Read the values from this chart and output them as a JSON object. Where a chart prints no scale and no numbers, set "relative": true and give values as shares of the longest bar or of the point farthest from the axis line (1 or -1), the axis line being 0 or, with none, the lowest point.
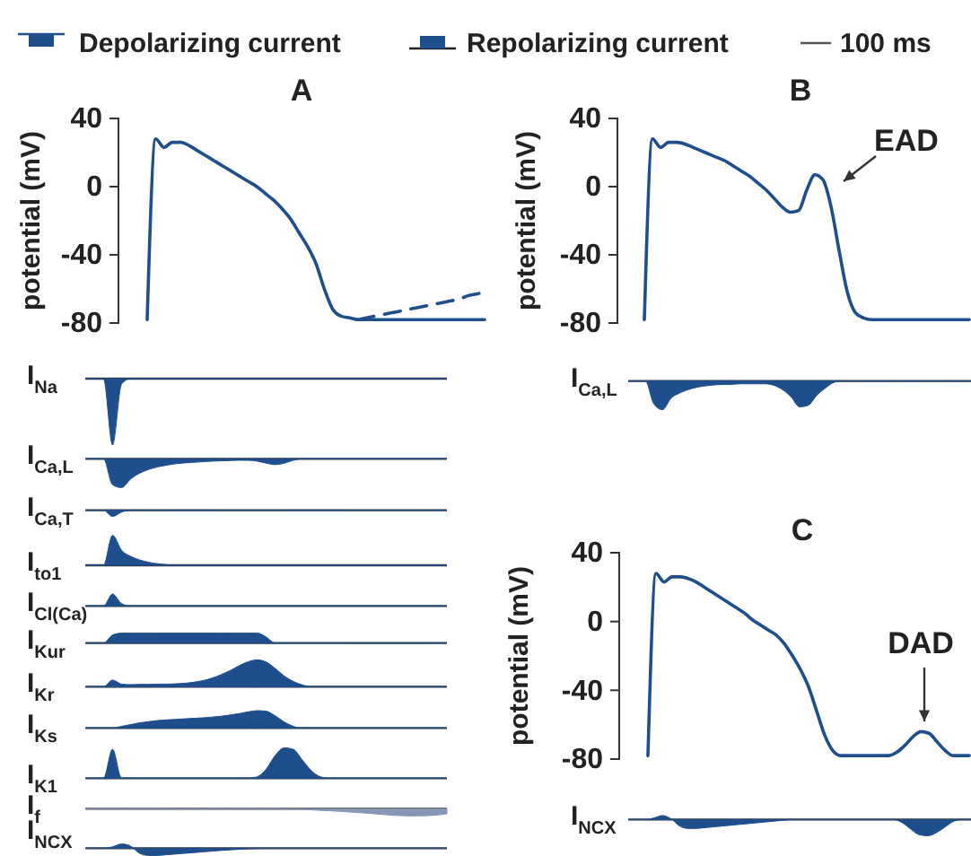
{
  "chart_data": [
    {
      "type": "line",
      "title": "A",
      "ylabel": "potential (mV)",
      "annotations": [
        "Depolarizing current",
        "Repolarizing current",
        "100 ms"
      ],
      "categories": [
        null,
        null,
        null,
        null,
        null,
        null,
        null,
        null,
        null,
        null,
        null,
        null,
        null,
        null,
        null,
        null,
        null,
        null,
        null,
        null,
        null,
        null,
        null,
        null,
        null,
        null,
        null,
        null,
        null,
        null,
        null,
        null,
        null,
        null,
        null,
        null,
        null,
        null,
        null,
        null,
        null
      ],
      "series": [
        {
          "color": "#1f4e8c",
          "line_style": "solid",
          "values": [
            -78,
            28,
            23,
            26,
            26,
            24,
            21,
            18,
            15,
            12,
            9,
            6,
            3,
            0,
            -4,
            -8,
            -13,
            -19,
            -27,
            -35,
            -45,
            -60,
            -72,
            -76,
            -77,
            -78,
            -78,
            -78,
            -78,
            -78,
            -78,
            -78,
            -78,
            -78,
            -78,
            -78,
            -78,
            -78,
            -78,
            -78,
            -78
          ]
        },
        {
          "color": "#1f4e8c",
          "line_style": "dashed",
          "values": [
            null,
            null,
            null,
            null,
            null,
            null,
            null,
            null,
            null,
            null,
            null,
            null,
            null,
            null,
            null,
            null,
            null,
            null,
            null,
            null,
            null,
            null,
            null,
            null,
            null,
            -78,
            -77,
            -76,
            -75,
            -74,
            -73,
            -72,
            -71,
            -70,
            -69,
            -68,
            -67,
            -66,
            -64,
            -63,
            -62
          ]
        }
      ],
      "ylim": [
        -80,
        40
      ],
      "yticks": [
        -80,
        -40,
        0,
        40
      ],
      "tick_labels": "y"
    },
    {
      "type": "line",
      "title": "B",
      "ylabel": "potential (mV)",
      "annotations": [
        "EAD"
      ],
      "categories": [
        null,
        null,
        null,
        null,
        null,
        null,
        null,
        null,
        null,
        null,
        null,
        null,
        null,
        null,
        null,
        null,
        null,
        null,
        null,
        null,
        null,
        null,
        null,
        null,
        null,
        null,
        null,
        null,
        null,
        null,
        null,
        null,
        null,
        null,
        null,
        null,
        null,
        null,
        null,
        null,
        null
      ],
      "series": [
        {
          "color": "#1f4e8c",
          "line_style": "solid",
          "values": [
            -78,
            28,
            23,
            26,
            26,
            25,
            23,
            21,
            19,
            17,
            15,
            12,
            9,
            6,
            2,
            -2,
            -7,
            -12,
            -15,
            -14,
            -2,
            7,
            4,
            -12,
            -38,
            -62,
            -74,
            -77,
            -78,
            -78,
            -78,
            -78,
            -78,
            -78,
            -78,
            -78,
            -78,
            -78,
            -78,
            -78,
            -78
          ]
        }
      ],
      "ylim": [
        -80,
        40
      ],
      "yticks": [
        -80,
        -40,
        0,
        40
      ],
      "tick_labels": "y"
    },
    {
      "type": "area",
      "ylabel": "I$_{Na}$",
      "relative": true,
      "color": "#1f4e8c",
      "categories": [
        null,
        null,
        null,
        null,
        null,
        null,
        null,
        null,
        null,
        null,
        null,
        null,
        null,
        null,
        null,
        null,
        null,
        null,
        null,
        null,
        null,
        null,
        null,
        null,
        null,
        null,
        null,
        null,
        null,
        null,
        null,
        null,
        null,
        null,
        null,
        null,
        null,
        null,
        null,
        null,
        null
      ],
      "values": [
        0,
        0,
        0,
        -1,
        -0.08,
        0,
        0,
        0,
        0,
        0,
        0,
        0,
        0,
        0,
        0,
        0,
        0,
        0,
        0,
        0,
        0,
        0,
        0,
        0,
        0,
        0,
        0,
        0,
        0,
        0,
        0,
        0,
        0,
        0,
        0,
        0,
        0,
        0,
        0,
        0,
        0
      ]
    },
    {
      "type": "area",
      "ylabel": "I$_{Ca,L}$",
      "relative": true,
      "color": "#1f4e8c",
      "categories": [
        null,
        null,
        null,
        null,
        null,
        null,
        null,
        null,
        null,
        null,
        null,
        null,
        null,
        null,
        null,
        null,
        null,
        null,
        null,
        null,
        null,
        null,
        null,
        null,
        null,
        null,
        null,
        null,
        null,
        null,
        null,
        null,
        null,
        null,
        null,
        null,
        null,
        null,
        null,
        null,
        null
      ],
      "values": [
        0,
        0,
        0,
        -0.9,
        -1,
        -0.7,
        -0.5,
        -0.37,
        -0.28,
        -0.22,
        -0.17,
        -0.14,
        -0.12,
        -0.1,
        -0.08,
        -0.07,
        -0.06,
        -0.05,
        -0.05,
        -0.08,
        -0.15,
        -0.2,
        -0.15,
        -0.05,
        0,
        0,
        0,
        0,
        0,
        0,
        0,
        0,
        0,
        0,
        0,
        0,
        0,
        0,
        0,
        0,
        0
      ]
    },
    {
      "type": "area",
      "ylabel": "I$_{Ca,T}$",
      "relative": true,
      "color": "#1f4e8c",
      "categories": [
        null,
        null,
        null,
        null,
        null,
        null,
        null,
        null,
        null,
        null,
        null,
        null,
        null,
        null,
        null,
        null,
        null,
        null,
        null,
        null,
        null,
        null,
        null,
        null,
        null,
        null,
        null,
        null,
        null,
        null,
        null,
        null,
        null,
        null,
        null,
        null,
        null,
        null,
        null,
        null,
        null
      ],
      "values": [
        0,
        0,
        0,
        -1,
        -0.3,
        0,
        0,
        0,
        0,
        0,
        0,
        0,
        0,
        0,
        0,
        0,
        0,
        0,
        0,
        0,
        0,
        0,
        0,
        0,
        0,
        0,
        0,
        0,
        0,
        0,
        0,
        0,
        0,
        0,
        0,
        0,
        0,
        0,
        0,
        0,
        0
      ]
    },
    {
      "type": "area",
      "ylabel": "I$_{to1}$",
      "relative": true,
      "color": "#1f4e8c",
      "categories": [
        null,
        null,
        null,
        null,
        null,
        null,
        null,
        null,
        null,
        null,
        null,
        null,
        null,
        null,
        null,
        null,
        null,
        null,
        null,
        null,
        null,
        null,
        null,
        null,
        null,
        null,
        null,
        null,
        null,
        null,
        null,
        null,
        null,
        null,
        null,
        null,
        null,
        null,
        null,
        null,
        null
      ],
      "values": [
        0,
        0,
        0,
        1,
        0.5,
        0.3,
        0.18,
        0.1,
        0.05,
        0.02,
        0,
        0,
        0,
        0,
        0,
        0,
        0,
        0,
        0,
        0,
        0,
        0,
        0,
        0,
        0,
        0,
        0,
        0,
        0,
        0,
        0,
        0,
        0,
        0,
        0,
        0,
        0,
        0,
        0,
        0,
        0
      ]
    },
    {
      "type": "area",
      "ylabel": "I$_{Cl(Ca)}$",
      "relative": true,
      "color": "#1f4e8c",
      "categories": [
        null,
        null,
        null,
        null,
        null,
        null,
        null,
        null,
        null,
        null,
        null,
        null,
        null,
        null,
        null,
        null,
        null,
        null,
        null,
        null,
        null,
        null,
        null,
        null,
        null,
        null,
        null,
        null,
        null,
        null,
        null,
        null,
        null,
        null,
        null,
        null,
        null,
        null,
        null,
        null,
        null
      ],
      "values": [
        0,
        0,
        0,
        1,
        0.2,
        0,
        0,
        0,
        0,
        0,
        0,
        0,
        0,
        0,
        0,
        0,
        0,
        0,
        0,
        0,
        0,
        0,
        0,
        0,
        0,
        0,
        0,
        0,
        0,
        0,
        0,
        0,
        0,
        0,
        0,
        0,
        0,
        0,
        0,
        0,
        0
      ]
    },
    {
      "type": "area",
      "ylabel": "I$_{Kur}$",
      "relative": true,
      "color": "#1f4e8c",
      "categories": [
        null,
        null,
        null,
        null,
        null,
        null,
        null,
        null,
        null,
        null,
        null,
        null,
        null,
        null,
        null,
        null,
        null,
        null,
        null,
        null,
        null,
        null,
        null,
        null,
        null,
        null,
        null,
        null,
        null,
        null,
        null,
        null,
        null,
        null,
        null,
        null,
        null,
        null,
        null,
        null,
        null
      ],
      "values": [
        0,
        0,
        0,
        0.8,
        1,
        1,
        1,
        1,
        1,
        1,
        1,
        1,
        1,
        1,
        1,
        1,
        1,
        1,
        1,
        1,
        0.6,
        0,
        0,
        0,
        0,
        0,
        0,
        0,
        0,
        0,
        0,
        0,
        0,
        0,
        0,
        0,
        0,
        0,
        0,
        0,
        0
      ]
    },
    {
      "type": "area",
      "ylabel": "I$_{Kr}$",
      "relative": true,
      "color": "#1f4e8c",
      "categories": [
        null,
        null,
        null,
        null,
        null,
        null,
        null,
        null,
        null,
        null,
        null,
        null,
        null,
        null,
        null,
        null,
        null,
        null,
        null,
        null,
        null,
        null,
        null,
        null,
        null,
        null,
        null,
        null,
        null,
        null,
        null,
        null,
        null,
        null,
        null,
        null,
        null,
        null,
        null,
        null,
        null
      ],
      "values": [
        0,
        0,
        0,
        0.25,
        0.1,
        0.08,
        0.09,
        0.09,
        0.1,
        0.1,
        0.11,
        0.13,
        0.17,
        0.23,
        0.32,
        0.45,
        0.6,
        0.78,
        0.93,
        1,
        0.92,
        0.68,
        0.4,
        0.2,
        0.07,
        0,
        0,
        0,
        0,
        0,
        0,
        0,
        0,
        0,
        0,
        0,
        0,
        0,
        0,
        0,
        0
      ]
    },
    {
      "type": "area",
      "ylabel": "I$_{Ks}$",
      "relative": true,
      "color": "#1f4e8c",
      "categories": [
        null,
        null,
        null,
        null,
        null,
        null,
        null,
        null,
        null,
        null,
        null,
        null,
        null,
        null,
        null,
        null,
        null,
        null,
        null,
        null,
        null,
        null,
        null,
        null,
        null,
        null,
        null,
        null,
        null,
        null,
        null,
        null,
        null,
        null,
        null,
        null,
        null,
        null,
        null,
        null,
        null
      ],
      "values": [
        0,
        0,
        0,
        0,
        0.1,
        0.2,
        0.3,
        0.37,
        0.43,
        0.47,
        0.5,
        0.53,
        0.56,
        0.59,
        0.63,
        0.68,
        0.75,
        0.83,
        0.93,
        1,
        0.97,
        0.7,
        0.35,
        0.1,
        0,
        0,
        0,
        0,
        0,
        0,
        0,
        0,
        0,
        0,
        0,
        0,
        0,
        0,
        0,
        0,
        0
      ]
    },
    {
      "type": "area",
      "ylabel": "I$_{K1}$",
      "relative": true,
      "color": "#1f4e8c",
      "categories": [
        null,
        null,
        null,
        null,
        null,
        null,
        null,
        null,
        null,
        null,
        null,
        null,
        null,
        null,
        null,
        null,
        null,
        null,
        null,
        null,
        null,
        null,
        null,
        null,
        null,
        null,
        null,
        null,
        null,
        null,
        null,
        null,
        null,
        null,
        null,
        null,
        null,
        null,
        null,
        null,
        null
      ],
      "values": [
        0,
        0,
        0,
        0.95,
        0,
        0,
        0,
        0,
        0,
        0,
        0,
        0,
        0,
        0,
        0,
        0,
        0,
        0,
        0,
        0.05,
        0.3,
        0.75,
        1,
        0.95,
        0.6,
        0.25,
        0.05,
        0,
        0,
        0,
        0,
        0,
        0,
        0,
        0,
        0,
        0,
        0,
        0,
        0,
        0
      ]
    },
    {
      "type": "area",
      "ylabel": "I$_{f}$",
      "relative": true,
      "color": "#8796b8",
      "categories": [
        null,
        null,
        null,
        null,
        null,
        null,
        null,
        null,
        null,
        null,
        null,
        null,
        null,
        null,
        null,
        null,
        null,
        null,
        null,
        null,
        null,
        null,
        null,
        null,
        null,
        null,
        null,
        null,
        null,
        null,
        null,
        null,
        null,
        null,
        null,
        null,
        null,
        null,
        null,
        null,
        null
      ],
      "values": [
        0,
        0,
        0,
        0,
        0,
        0,
        0,
        0,
        0,
        0,
        0,
        0,
        0,
        0,
        0,
        0,
        0,
        0,
        0,
        0,
        0,
        0,
        0,
        -0.05,
        -0.08,
        -0.15,
        -0.22,
        -0.28,
        -0.35,
        -0.43,
        -0.52,
        -0.6,
        -0.7,
        -0.8,
        -0.9,
        -0.96,
        -1,
        -0.98,
        -0.95,
        -0.85,
        -0.7
      ]
    },
    {
      "type": "area",
      "ylabel": "I$_{NCX}$",
      "relative": true,
      "color": "#1f4e8c",
      "categories": [
        null,
        null,
        null,
        null,
        null,
        null,
        null,
        null,
        null,
        null,
        null,
        null,
        null,
        null,
        null,
        null,
        null,
        null,
        null,
        null,
        null,
        null,
        null,
        null,
        null,
        null,
        null,
        null,
        null,
        null,
        null,
        null,
        null,
        null,
        null,
        null,
        null,
        null,
        null,
        null,
        null
      ],
      "values": [
        0,
        0,
        0,
        0.2,
        0.6,
        0.3,
        -0.7,
        -1,
        -1,
        -0.9,
        -0.8,
        -0.7,
        -0.6,
        -0.5,
        -0.4,
        -0.3,
        -0.22,
        -0.15,
        -0.08,
        -0.03,
        0,
        0,
        0,
        0,
        0,
        0,
        0,
        0,
        0,
        0,
        0,
        0,
        0,
        0,
        0,
        0,
        0,
        0,
        0,
        0,
        0
      ]
    },
    {
      "type": "area",
      "ylabel": "I$_{Ca,L}$",
      "relative": true,
      "color": "#1f4e8c",
      "categories": [
        null,
        null,
        null,
        null,
        null,
        null,
        null,
        null,
        null,
        null,
        null,
        null,
        null,
        null,
        null,
        null,
        null,
        null,
        null,
        null,
        null,
        null,
        null,
        null,
        null,
        null,
        null,
        null,
        null,
        null,
        null,
        null,
        null,
        null,
        null,
        null,
        null,
        null,
        null,
        null,
        null
      ],
      "values": [
        0,
        0,
        0,
        -0.8,
        -1,
        -0.6,
        -0.42,
        -0.3,
        -0.22,
        -0.17,
        -0.14,
        -0.12,
        -0.12,
        -0.1,
        -0.1,
        -0.1,
        -0.1,
        -0.15,
        -0.3,
        -0.55,
        -0.9,
        -0.85,
        -0.5,
        -0.25,
        -0.05,
        0,
        0,
        0,
        0,
        0,
        0,
        0,
        0,
        0,
        0,
        0,
        0,
        0,
        0,
        0,
        0
      ]
    },
    {
      "type": "line",
      "title": "C",
      "ylabel": "potential (mV)",
      "annotations": [
        "DAD"
      ],
      "categories": [
        null,
        null,
        null,
        null,
        null,
        null,
        null,
        null,
        null,
        null,
        null,
        null,
        null,
        null,
        null,
        null,
        null,
        null,
        null,
        null,
        null,
        null,
        null,
        null,
        null,
        null,
        null,
        null,
        null,
        null,
        null,
        null,
        null,
        null,
        null,
        null,
        null,
        null,
        null,
        null,
        null
      ],
      "series": [
        {
          "color": "#1f4e8c",
          "line_style": "solid",
          "values": [
            -78,
            28,
            23,
            26,
            26,
            25,
            23,
            20,
            17,
            14,
            11,
            8,
            5,
            1,
            -2,
            -5,
            -8,
            -13,
            -20,
            -28,
            -38,
            -52,
            -66,
            -75,
            -78,
            -78,
            -78,
            -78,
            -78,
            -78,
            -78,
            -76,
            -72,
            -67,
            -64,
            -65,
            -70,
            -75,
            -78,
            -78,
            -78
          ]
        }
      ],
      "ylim": [
        -80,
        40
      ],
      "yticks": [
        -80,
        -40,
        0,
        40
      ],
      "tick_labels": "y"
    },
    {
      "type": "area",
      "ylabel": "I$_{NCX}$",
      "relative": true,
      "color": "#1f4e8c",
      "categories": [
        null,
        null,
        null,
        null,
        null,
        null,
        null,
        null,
        null,
        null,
        null,
        null,
        null,
        null,
        null,
        null,
        null,
        null,
        null,
        null,
        null,
        null,
        null,
        null,
        null,
        null,
        null,
        null,
        null,
        null,
        null,
        null,
        null,
        null,
        null,
        null,
        null,
        null,
        null,
        null,
        null
      ],
      "values": [
        0,
        0,
        0,
        0.1,
        0.25,
        0.05,
        -0.4,
        -0.55,
        -0.55,
        -0.5,
        -0.45,
        -0.4,
        -0.35,
        -0.3,
        -0.25,
        -0.2,
        -0.15,
        -0.1,
        -0.05,
        0,
        0,
        0,
        0,
        0,
        0,
        0,
        0,
        0,
        0,
        0,
        0,
        0,
        -0.2,
        -0.6,
        -0.95,
        -1,
        -0.8,
        -0.45,
        -0.1,
        0,
        0
      ]
    }
  ]
}
